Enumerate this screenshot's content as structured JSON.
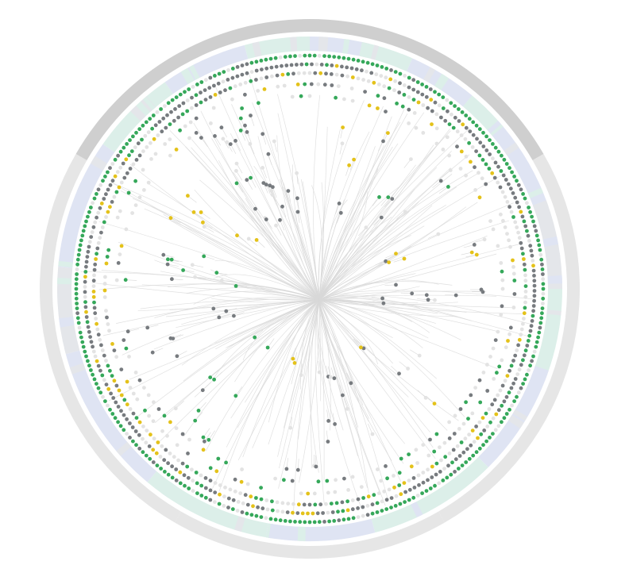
{
  "diagram": {
    "type": "radial-phylogenetic-tree",
    "colors": {
      "background": "#ffffff",
      "branch": "#d8d8d8",
      "outer_ring_dark": "#cfcfcf",
      "outer_ring_light": "#e6e6e6",
      "band_blue": "#dfe4f3",
      "band_green": "#dcefe9",
      "band_grey": "#e4e6ea",
      "leaf_green": "#35a85a",
      "leaf_grey": "#777b7f",
      "leaf_yellow": "#e4c21a",
      "leaf_light": "#e3e3e3"
    },
    "outer_ring": [
      {
        "name": "clade-ring-a",
        "start_deg": -90,
        "end_deg": -30,
        "tone": "dark"
      },
      {
        "name": "clade-ring-b",
        "start_deg": -30,
        "end_deg": 60,
        "tone": "light"
      },
      {
        "name": "clade-ring-c",
        "start_deg": 60,
        "end_deg": 120,
        "tone": "light"
      },
      {
        "name": "clade-ring-d",
        "start_deg": 120,
        "end_deg": 210,
        "tone": "light"
      },
      {
        "name": "clade-ring-e",
        "start_deg": 210,
        "end_deg": 270,
        "tone": "dark"
      }
    ],
    "annotation_band_segments": [
      {
        "start_deg": -90,
        "end_deg": -78,
        "tone": "blue"
      },
      {
        "start_deg": -78,
        "end_deg": -66,
        "tone": "green"
      },
      {
        "start_deg": -66,
        "end_deg": -50,
        "tone": "blue"
      },
      {
        "start_deg": -50,
        "end_deg": -40,
        "tone": "green"
      },
      {
        "start_deg": -40,
        "end_deg": -20,
        "tone": "blue"
      },
      {
        "start_deg": -20,
        "end_deg": 0,
        "tone": "grey"
      },
      {
        "start_deg": 0,
        "end_deg": 20,
        "tone": "green"
      },
      {
        "start_deg": 20,
        "end_deg": 45,
        "tone": "blue"
      },
      {
        "start_deg": 45,
        "end_deg": 75,
        "tone": "green"
      },
      {
        "start_deg": 75,
        "end_deg": 100,
        "tone": "blue"
      },
      {
        "start_deg": 100,
        "end_deg": 130,
        "tone": "green"
      },
      {
        "start_deg": 130,
        "end_deg": 165,
        "tone": "blue"
      },
      {
        "start_deg": 165,
        "end_deg": 185,
        "tone": "grey"
      },
      {
        "start_deg": 185,
        "end_deg": 215,
        "tone": "blue"
      },
      {
        "start_deg": 215,
        "end_deg": 235,
        "tone": "green"
      },
      {
        "start_deg": 235,
        "end_deg": 255,
        "tone": "blue"
      },
      {
        "start_deg": 255,
        "end_deg": 270,
        "tone": "green"
      }
    ],
    "leaf_rings": [
      {
        "ring": 0,
        "count": 300,
        "pattern": "green-dominant"
      },
      {
        "ring": 1,
        "count": 280,
        "pattern": "grey-dominant"
      },
      {
        "ring": 2,
        "count": 250,
        "pattern": "mixed"
      },
      {
        "ring": 3,
        "count": 190,
        "pattern": "sparse"
      },
      {
        "ring": 4,
        "count": 140,
        "pattern": "sparse"
      }
    ],
    "inner_clusters": [
      {
        "angle_deg": -120,
        "count": 14,
        "color": "green"
      },
      {
        "angle_deg": -105,
        "count": 12,
        "color": "grey"
      },
      {
        "angle_deg": -70,
        "count": 8,
        "color": "yellow"
      },
      {
        "angle_deg": -45,
        "count": 10,
        "color": "green"
      },
      {
        "angle_deg": -20,
        "count": 9,
        "color": "yellow"
      },
      {
        "angle_deg": 5,
        "count": 10,
        "color": "grey"
      },
      {
        "angle_deg": 40,
        "count": 7,
        "color": "yellow"
      },
      {
        "angle_deg": 75,
        "count": 11,
        "color": "grey"
      },
      {
        "angle_deg": 95,
        "count": 8,
        "color": "yellow"
      },
      {
        "angle_deg": 130,
        "count": 12,
        "color": "green"
      },
      {
        "angle_deg": 160,
        "count": 10,
        "color": "grey"
      },
      {
        "angle_deg": 190,
        "count": 13,
        "color": "green"
      },
      {
        "angle_deg": 215,
        "count": 9,
        "color": "yellow"
      },
      {
        "angle_deg": 240,
        "count": 12,
        "color": "grey"
      }
    ]
  }
}
